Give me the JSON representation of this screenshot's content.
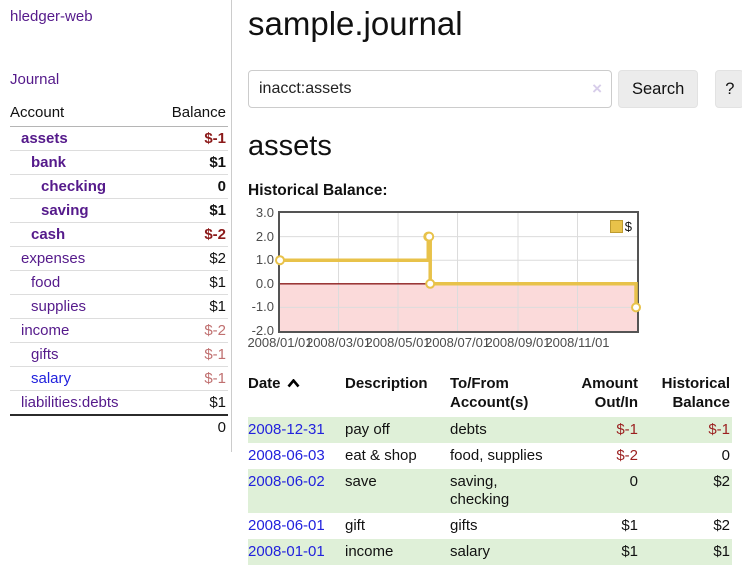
{
  "colors": {
    "link_purple": "#551a8b",
    "link_blue": "#2222dd",
    "negative_strong": "#8b1a1a",
    "negative_muted": "#c07070",
    "row_stripe_green": "#dff0d8",
    "chart_line": "#e8c24a",
    "chart_negative_fill": "#fbdada",
    "chart_zero_line": "#8b1c1c",
    "chart_border": "#545454",
    "chart_grid": "#dcdcdc",
    "button_bg": "#ececec"
  },
  "app": {
    "brand": "hledger-web"
  },
  "sidebar": {
    "journal_link": "Journal",
    "accounts_table": {
      "headers": {
        "account": "Account",
        "balance": "Balance"
      },
      "rows": [
        {
          "account": "assets",
          "balance": "$-1",
          "level": 1,
          "account_style": "matched",
          "balance_style": "strong-negative"
        },
        {
          "account": "bank",
          "balance": "$1",
          "level": 2,
          "account_style": "matched",
          "balance_style": "strong"
        },
        {
          "account": "checking",
          "balance": "0",
          "level": 3,
          "account_style": "matched",
          "balance_style": "strong"
        },
        {
          "account": "saving",
          "balance": "$1",
          "level": 3,
          "account_style": "matched",
          "balance_style": "strong"
        },
        {
          "account": "cash",
          "balance": "$-2",
          "level": 2,
          "account_style": "matched",
          "balance_style": "strong-negative"
        },
        {
          "account": "expenses",
          "balance": "$2",
          "level": 1,
          "account_style": "plain",
          "balance_style": "plain"
        },
        {
          "account": "food",
          "balance": "$1",
          "level": 2,
          "account_style": "plain",
          "balance_style": "plain"
        },
        {
          "account": "supplies",
          "balance": "$1",
          "level": 2,
          "account_style": "plain",
          "balance_style": "plain"
        },
        {
          "account": "income",
          "balance": "$-2",
          "level": 1,
          "account_style": "plain",
          "balance_style": "muted-negative"
        },
        {
          "account": "gifts",
          "balance": "$-1",
          "level": 2,
          "account_style": "plain",
          "balance_style": "muted-negative"
        },
        {
          "account": "salary",
          "balance": "$-1",
          "level": 2,
          "account_style": "blue",
          "balance_style": "muted-negative"
        },
        {
          "account": "liabilities:debts",
          "balance": "$1",
          "level": 1,
          "account_style": "plain",
          "balance_style": "plain"
        }
      ],
      "total": "0"
    }
  },
  "main": {
    "title": "sample.journal",
    "search": {
      "value": "inacct:assets",
      "clear_icon": "×",
      "button_label": "Search",
      "help_label": "?"
    },
    "account_heading": "assets",
    "chart_heading": "Historical Balance:",
    "chart_data": {
      "type": "line",
      "step": true,
      "title": "Historical Balance",
      "legend": [
        {
          "label": "$",
          "color": "#e8c24a"
        }
      ],
      "legend_position": "top-right",
      "grid": true,
      "negative_region_highlight": true,
      "x_range": [
        "2008-01-01",
        "2009-01-01"
      ],
      "y_range": [
        -2,
        3
      ],
      "y_ticks": [
        {
          "label": "3.0",
          "value": 3
        },
        {
          "label": "2.0",
          "value": 2
        },
        {
          "label": "1.0",
          "value": 1
        },
        {
          "label": "0.0",
          "value": 0
        },
        {
          "label": "-1.0",
          "value": -1
        },
        {
          "label": "-2.0",
          "value": -2
        }
      ],
      "x_ticks": [
        {
          "label": "2008/01/01",
          "date": "2008-01-01"
        },
        {
          "label": "2008/03/01",
          "date": "2008-03-01"
        },
        {
          "label": "2008/05/01",
          "date": "2008-05-01"
        },
        {
          "label": "2008/07/01",
          "date": "2008-07-01"
        },
        {
          "label": "2008/09/01",
          "date": "2008-09-01"
        },
        {
          "label": "2008/11/01",
          "date": "2008-11-01"
        }
      ],
      "series": [
        {
          "name": "$",
          "color": "#e8c24a",
          "points": [
            {
              "date": "2008-01-01",
              "value": 1
            },
            {
              "date": "2008-06-01",
              "value": 2
            },
            {
              "date": "2008-06-02",
              "value": 2
            },
            {
              "date": "2008-06-03",
              "value": 0
            },
            {
              "date": "2008-12-31",
              "value": -1
            }
          ]
        }
      ]
    },
    "register_table": {
      "sort": "ascending",
      "headers": {
        "date": "Date",
        "description": "Description",
        "tofrom_lines": [
          "To/From",
          "Account(s)"
        ],
        "amount_lines": [
          "Amount",
          "Out/In"
        ],
        "balance_lines": [
          "Historical",
          "Balance"
        ]
      },
      "rows": [
        {
          "date": "2008-12-31",
          "description": "pay off",
          "accounts": "debts",
          "amount": "$-1",
          "amount_style": "negative",
          "balance": "$-1",
          "balance_style": "negative"
        },
        {
          "date": "2008-06-03",
          "description": "eat & shop",
          "accounts": "food, supplies",
          "amount": "$-2",
          "amount_style": "negative",
          "balance": "0",
          "balance_style": "plain"
        },
        {
          "date": "2008-06-02",
          "description": "save",
          "accounts": "saving, checking",
          "amount": "0",
          "amount_style": "plain",
          "balance": "$2",
          "balance_style": "plain"
        },
        {
          "date": "2008-06-01",
          "description": "gift",
          "accounts": "gifts",
          "amount": "$1",
          "amount_style": "plain",
          "balance": "$2",
          "balance_style": "plain"
        },
        {
          "date": "2008-01-01",
          "description": "income",
          "accounts": "salary",
          "amount": "$1",
          "amount_style": "plain",
          "balance": "$1",
          "balance_style": "plain"
        }
      ]
    }
  }
}
